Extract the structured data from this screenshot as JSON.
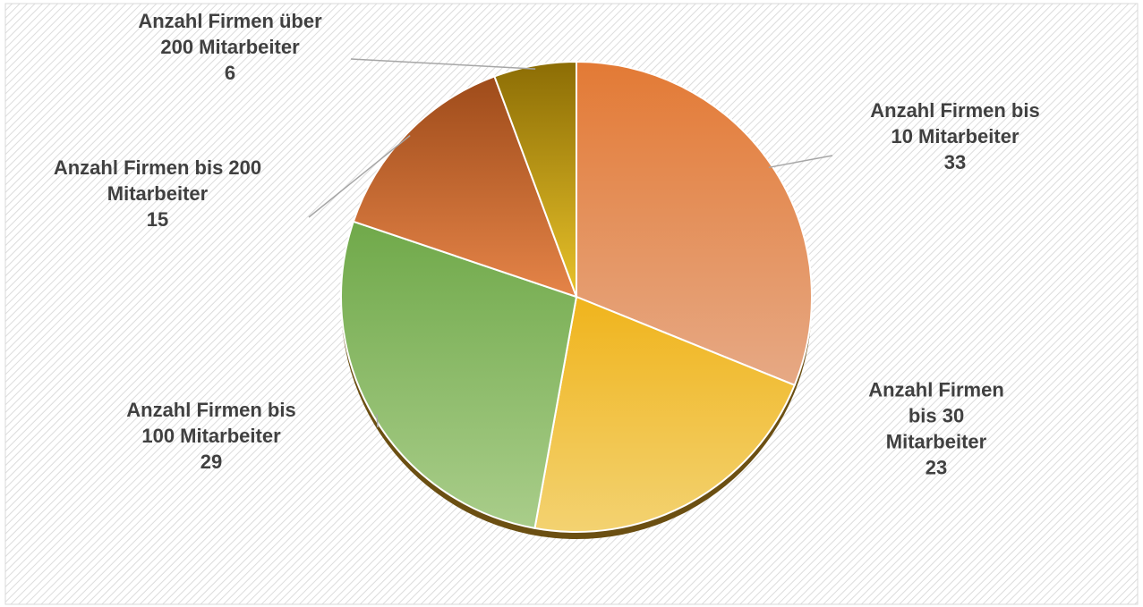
{
  "chart_data": {
    "type": "pie",
    "title": "",
    "slices": [
      {
        "label_lines": [
          "Anzahl Firmen bis",
          "10 Mitarbeiter"
        ],
        "value": 33,
        "value_label": "33",
        "color": "#e49a63"
      },
      {
        "label_lines": [
          "Anzahl Firmen",
          "bis 30",
          "Mitarbeiter"
        ],
        "value": 23,
        "value_label": "23",
        "color": "#f0c43a"
      },
      {
        "label_lines": [
          "Anzahl Firmen bis",
          "100 Mitarbeiter"
        ],
        "value": 29,
        "value_label": "29",
        "color": "#86b862"
      },
      {
        "label_lines": [
          "Anzahl Firmen bis  200",
          "Mitarbeiter"
        ],
        "value": 15,
        "value_label": "15",
        "color": "#d36d2c"
      },
      {
        "label_lines": [
          "Anzahl Firmen über",
          "200 Mitarbeiter"
        ],
        "value": 6,
        "value_label": "6",
        "color": "#c9a20e"
      }
    ],
    "start_angle_deg": 0,
    "direction": "clockwise",
    "legend": "none",
    "data_labels": "outside-with-leader-lines"
  }
}
